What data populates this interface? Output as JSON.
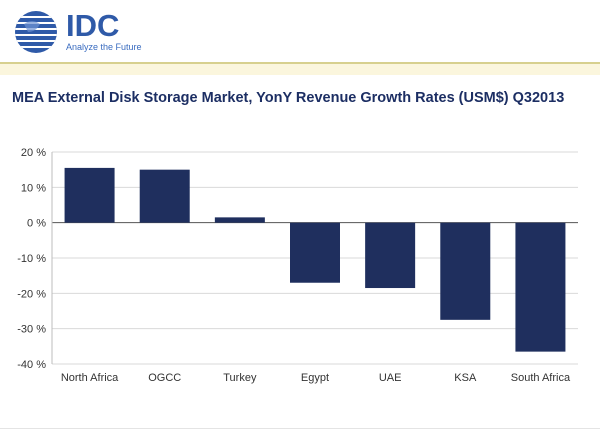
{
  "brand": {
    "name": "IDC",
    "tagline": "Analyze the Future",
    "colors": {
      "primary": "#2f5aa8",
      "band": "#fbf6dd",
      "bar": "#1f2f5e"
    }
  },
  "chart_data": {
    "type": "bar",
    "title": "MEA External Disk Storage Market, YonY Revenue Growth Rates (USM$) Q32013",
    "categories": [
      "North Africa",
      "OGCC",
      "Turkey",
      "Egypt",
      "UAE",
      "KSA",
      "South Africa"
    ],
    "values": [
      15.5,
      15.0,
      1.5,
      -17.0,
      -18.5,
      -27.5,
      -36.5
    ],
    "ylim": [
      -40,
      20
    ],
    "yticks": [
      20,
      10,
      0,
      -10,
      -20,
      -30,
      -40
    ],
    "ytick_labels": [
      "20 %",
      "10 %",
      "0 %",
      "-10 %",
      "-20 %",
      "-30 %",
      "-40 %"
    ],
    "xlabel": "",
    "ylabel": "",
    "grid": true,
    "legend": "none"
  }
}
